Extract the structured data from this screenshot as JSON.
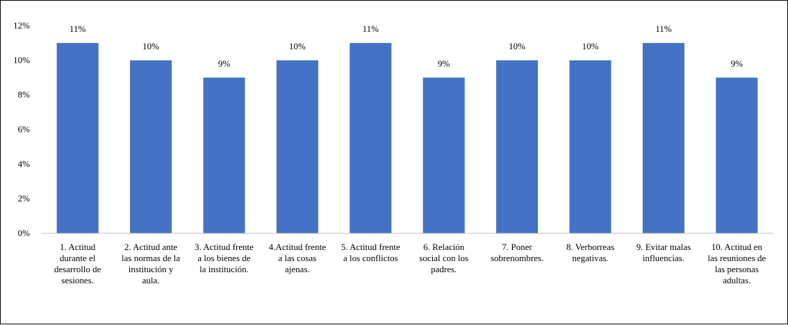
{
  "chart_data": {
    "type": "bar",
    "title": "",
    "xlabel": "",
    "ylabel": "",
    "ylim": [
      0,
      12
    ],
    "yticks": [
      "0%",
      "2%",
      "4%",
      "6%",
      "8%",
      "10%",
      "12%"
    ],
    "grid": false,
    "legend": "none",
    "bar_color": "#4472C4",
    "categories": [
      [
        "1. Actitud",
        "durante el",
        "desarrollo de",
        "sesiones."
      ],
      [
        "2. Actitud ante",
        "las normas de la",
        "institución y",
        "aula."
      ],
      [
        "3. Actitud frente",
        "a los bienes de",
        "la institución."
      ],
      [
        "4.Actitud frente",
        "a las cosas",
        "ajenas."
      ],
      [
        "5. Actitud frente",
        "a los conflictos"
      ],
      [
        "6. Relación",
        "social con los",
        "padres."
      ],
      [
        "7. Poner",
        "sobrenombres."
      ],
      [
        "8. Verborreas",
        "negativas."
      ],
      [
        "9. Evitar malas",
        "influencias."
      ],
      [
        "10. Actitud en",
        "las reuniones de",
        "las personas",
        "adultas."
      ]
    ],
    "values": [
      11,
      10,
      9,
      10,
      11,
      9,
      10,
      10,
      11,
      9
    ],
    "data_labels": [
      "11%",
      "10%",
      "9%",
      "10%",
      "11%",
      "9%",
      "10%",
      "10%",
      "11%",
      "9%"
    ]
  }
}
